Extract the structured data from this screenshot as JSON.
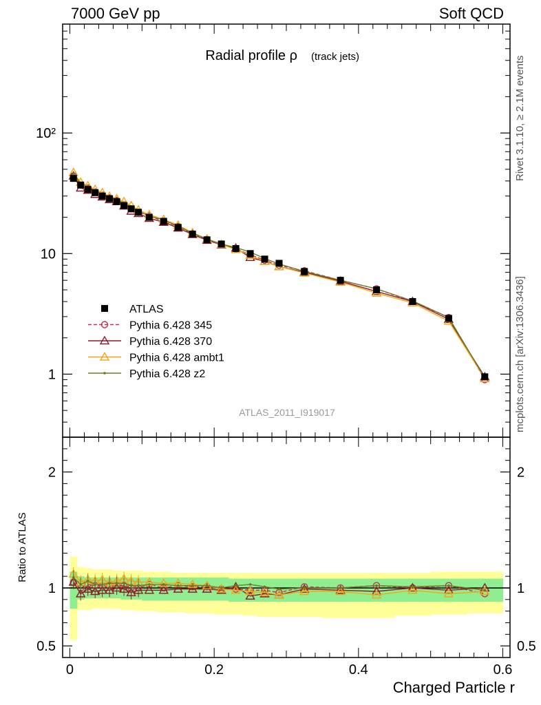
{
  "header": {
    "left": "7000 GeV pp",
    "right": "Soft QCD"
  },
  "side_text": {
    "rivet": "Rivet 3.1.10, ≥ 2.1M events",
    "mcplots": "mcplots.cern.ch [arXiv:1306.3436]"
  },
  "colors": {
    "atlas": "#000000",
    "p345": "#c0304a",
    "p370": "#8b1a2a",
    "ambt1": "#f0a818",
    "z2": "#6b7a2a",
    "band_stat": "#90ee90",
    "band_syst": "#ffff99"
  },
  "chart_data": [
    {
      "type": "line",
      "title": "Radial profile ρ",
      "title_sub": "(track jets)",
      "analysis_label": "ATLAS_2011_I919017",
      "xlabel": "",
      "ylabel": "",
      "xlim": [
        -0.01,
        0.61
      ],
      "ylim": [
        0.3,
        800
      ],
      "y_scale": "log",
      "y_tick_labels": [
        "1",
        "10",
        "10²"
      ],
      "legend_position": "bottom-left",
      "x": [
        0.005,
        0.015,
        0.025,
        0.035,
        0.045,
        0.055,
        0.065,
        0.075,
        0.085,
        0.095,
        0.11,
        0.13,
        0.15,
        0.17,
        0.19,
        0.21,
        0.23,
        0.25,
        0.27,
        0.29,
        0.325,
        0.375,
        0.425,
        0.475,
        0.525,
        0.575
      ],
      "series": [
        {
          "name": "ATLAS",
          "marker": "square",
          "values": [
            42,
            37,
            34,
            32,
            30,
            28.5,
            27,
            25,
            23.5,
            22,
            20,
            18.5,
            16.5,
            14.5,
            13,
            12,
            11,
            10,
            9,
            8.3,
            7.1,
            6,
            5,
            4,
            2.9,
            0.95
          ]
        },
        {
          "name": "Pythia 6.428 345",
          "marker": "circle-open",
          "dashed": true,
          "values": [
            44,
            37,
            35,
            32.5,
            30.5,
            29,
            27.5,
            25.5,
            23.5,
            22,
            20.5,
            18.5,
            16.8,
            14.6,
            13.1,
            11.9,
            10.9,
            9.8,
            8.8,
            8,
            7.2,
            6,
            5.1,
            4,
            2.95,
            0.9
          ]
        },
        {
          "name": "Pythia 6.428 370",
          "marker": "triangle-open",
          "values": [
            44,
            35,
            33.5,
            31,
            29.5,
            28,
            27,
            24.8,
            22.5,
            21.5,
            19.6,
            18.2,
            16.3,
            14.4,
            12.9,
            11.8,
            11.1,
            9.3,
            8.6,
            7.8,
            7,
            5.9,
            4.85,
            4,
            2.85,
            0.95
          ]
        },
        {
          "name": "Pythia 6.428 ambt1",
          "marker": "triangle-open",
          "values": [
            47,
            39,
            36.5,
            34,
            32,
            29.8,
            28.5,
            27,
            25,
            23,
            21,
            19.2,
            17.2,
            14.9,
            13.2,
            11.9,
            10.8,
            9.7,
            8.6,
            7.8,
            6.9,
            5.8,
            4.7,
            3.9,
            2.75,
            0.92
          ]
        },
        {
          "name": "Pythia 6.428 z2",
          "marker": "dot",
          "values": [
            46,
            38,
            36,
            33,
            31,
            29.5,
            28,
            26,
            24,
            22.5,
            20.5,
            19,
            16.8,
            14.8,
            13.2,
            12,
            11.2,
            10.3,
            9.1,
            8.2,
            7.1,
            6,
            5.1,
            4.05,
            2.95,
            0.93
          ]
        }
      ]
    },
    {
      "type": "line",
      "xlabel": "Charged Particle r",
      "ylabel": "Ratio to ATLAS",
      "xlim": [
        -0.01,
        0.61
      ],
      "ylim": [
        0.4,
        2.3
      ],
      "x_tick_labels": [
        "0",
        "0.2",
        "0.4",
        "0.6"
      ],
      "y_tick_labels": [
        "0.5",
        "1",
        "2"
      ],
      "x": [
        0.005,
        0.015,
        0.025,
        0.035,
        0.045,
        0.055,
        0.065,
        0.075,
        0.085,
        0.095,
        0.11,
        0.13,
        0.15,
        0.17,
        0.19,
        0.21,
        0.23,
        0.25,
        0.27,
        0.29,
        0.325,
        0.375,
        0.425,
        0.475,
        0.525,
        0.575
      ],
      "bands": {
        "x_edges": [
          0,
          0.01,
          0.02,
          0.03,
          0.04,
          0.05,
          0.06,
          0.07,
          0.08,
          0.09,
          0.1,
          0.12,
          0.14,
          0.16,
          0.18,
          0.2,
          0.22,
          0.24,
          0.26,
          0.28,
          0.3,
          0.35,
          0.4,
          0.45,
          0.5,
          0.55,
          0.6
        ],
        "stat_lo": [
          0.82,
          0.9,
          0.91,
          0.91,
          0.91,
          0.91,
          0.91,
          0.9,
          0.9,
          0.9,
          0.89,
          0.89,
          0.89,
          0.89,
          0.89,
          0.89,
          0.88,
          0.88,
          0.88,
          0.88,
          0.88,
          0.88,
          0.88,
          0.88,
          0.88,
          0.88
        ],
        "stat_hi": [
          1.14,
          1.1,
          1.09,
          1.09,
          1.09,
          1.09,
          1.09,
          1.09,
          1.09,
          1.09,
          1.09,
          1.09,
          1.09,
          1.09,
          1.09,
          1.09,
          1.08,
          1.08,
          1.08,
          1.08,
          1.08,
          1.08,
          1.08,
          1.08,
          1.08,
          1.08
        ],
        "syst_lo": [
          0.55,
          0.81,
          0.81,
          0.82,
          0.82,
          0.82,
          0.82,
          0.81,
          0.81,
          0.8,
          0.8,
          0.79,
          0.79,
          0.78,
          0.78,
          0.77,
          0.77,
          0.76,
          0.75,
          0.75,
          0.75,
          0.74,
          0.74,
          0.76,
          0.77,
          0.78
        ],
        "syst_hi": [
          1.27,
          1.18,
          1.17,
          1.16,
          1.16,
          1.16,
          1.15,
          1.15,
          1.15,
          1.15,
          1.14,
          1.14,
          1.13,
          1.13,
          1.13,
          1.13,
          1.13,
          1.13,
          1.13,
          1.13,
          1.13,
          1.13,
          1.13,
          1.13,
          1.14,
          1.14
        ]
      },
      "series": [
        {
          "name": "Pythia 6.428 345",
          "marker": "circle-open",
          "dashed": true,
          "values": [
            1.05,
            1.0,
            1.03,
            1.02,
            1.02,
            1.02,
            1.02,
            1.02,
            1.0,
            1.0,
            1.03,
            1.0,
            1.02,
            1.01,
            1.01,
            0.99,
            0.99,
            0.98,
            0.98,
            0.96,
            1.01,
            1.0,
            1.02,
            1.0,
            1.02,
            0.95
          ]
        },
        {
          "name": "Pythia 6.428 370",
          "marker": "triangle-open",
          "values": [
            1.05,
            0.95,
            0.99,
            0.97,
            0.98,
            0.98,
            1.0,
            0.99,
            0.96,
            0.98,
            0.98,
            0.98,
            0.99,
            0.99,
            0.99,
            0.98,
            1.01,
            0.93,
            0.95,
            0.94,
            0.99,
            0.98,
            0.97,
            1.0,
            0.98,
            1.0
          ]
        },
        {
          "name": "Pythia 6.428 ambt1",
          "marker": "triangle-open",
          "values": [
            1.12,
            1.05,
            1.07,
            1.06,
            1.07,
            1.05,
            1.06,
            1.08,
            1.06,
            1.05,
            1.05,
            1.04,
            1.04,
            1.03,
            1.02,
            0.99,
            0.98,
            0.97,
            0.96,
            0.94,
            0.97,
            0.97,
            0.94,
            0.98,
            0.95,
            0.97
          ]
        },
        {
          "name": "Pythia 6.428 z2",
          "marker": "dot",
          "values": [
            1.09,
            1.03,
            1.06,
            1.03,
            1.03,
            1.04,
            1.04,
            1.04,
            1.02,
            1.02,
            1.03,
            1.03,
            1.02,
            1.02,
            1.02,
            1.0,
            1.02,
            1.03,
            1.01,
            0.99,
            1.0,
            1.0,
            1.02,
            1.01,
            1.02,
            0.98
          ]
        }
      ]
    }
  ]
}
